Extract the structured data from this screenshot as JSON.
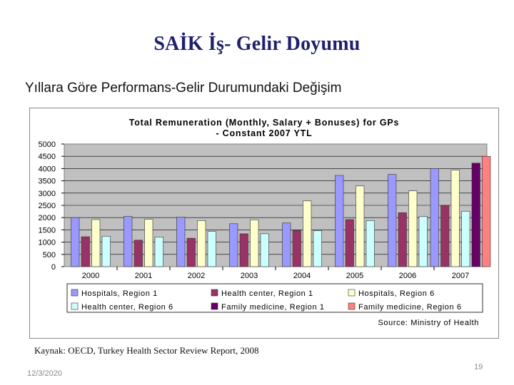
{
  "slide": {
    "title": "SAİK İş- Gelir Doyumu",
    "subtitle": "Yıllara Göre Performans-Gelir Durumundaki Değişim",
    "source_caption": "Kaynak: OECD, Turkey Health Sector Review Report, 2008",
    "date": "12/3/2020",
    "page_number": "19"
  },
  "chart_data": {
    "type": "bar",
    "title": "Total Remuneration (Monthly, Salary + Bonuses) for GPs",
    "subtitle": "- Constant 2007 YTL",
    "categories": [
      "2000",
      "2001",
      "2002",
      "2003",
      "2004",
      "2005",
      "2006",
      "2007"
    ],
    "ylim": [
      0,
      5000
    ],
    "yticks": [
      0,
      500,
      1000,
      1500,
      2000,
      2500,
      3000,
      3500,
      4000,
      4500,
      5000
    ],
    "grid": true,
    "legend_position": "bottom",
    "source_note": "Source: Ministry of Health",
    "series": [
      {
        "name": "Hospitals, Region 1",
        "color": "#9999ff",
        "values": [
          2000,
          2050,
          2020,
          1750,
          1780,
          3720,
          3760,
          4000
        ]
      },
      {
        "name": "Health center, Region 1",
        "color": "#993366",
        "values": [
          1220,
          1080,
          1160,
          1340,
          1480,
          1920,
          2200,
          2500
        ]
      },
      {
        "name": "Hospitals, Region 6",
        "color": "#ffffcc",
        "values": [
          1920,
          1930,
          1880,
          1910,
          2680,
          3290,
          3090,
          3940
        ]
      },
      {
        "name": "Health center, Region 6",
        "color": "#ccffff",
        "values": [
          1240,
          1210,
          1440,
          1340,
          1470,
          1880,
          2040,
          2260
        ]
      },
      {
        "name": "Family medicine, Region 1",
        "color": "#660066",
        "values": [
          null,
          null,
          null,
          null,
          null,
          null,
          null,
          4220
        ]
      },
      {
        "name": "Family medicine, Region 6",
        "color": "#ff8080",
        "values": [
          null,
          null,
          null,
          null,
          null,
          null,
          null,
          4500
        ]
      }
    ]
  }
}
